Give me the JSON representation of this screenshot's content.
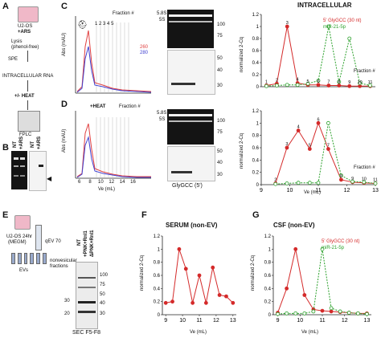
{
  "panels": {
    "A": {
      "letter": "A",
      "cells": [
        "U2-OS",
        "+ARS"
      ],
      "steps": [
        "Lysis",
        "(phenol-free)",
        "SPE",
        "INTRACELLULAR RNA",
        "+/- HEAT",
        "FPLC"
      ]
    },
    "B": {
      "letter": "B",
      "lanes_left": [
        "NT",
        "+ARS"
      ],
      "lanes_right": [
        "NT",
        "+ARS"
      ]
    },
    "C": {
      "letter": "C",
      "heading": "INTRACELLULAR",
      "fraction_header": "Fraction #",
      "fraction_numbers": [
        "1",
        "2",
        "3",
        "4",
        "5",
        "6",
        "7",
        "8",
        "9",
        "10",
        "11"
      ],
      "fplc_ylabel": "Abs (mAU)",
      "fplc_legend": [
        "260",
        "280"
      ],
      "gel_left_labels": [
        "5.8S",
        "5S"
      ],
      "gel_ticks": [
        "100",
        "75",
        "50",
        "40",
        "30"
      ],
      "line_ylabel": "normalized 2-Cq",
      "line_fraction_label": "Fraction #",
      "legend": [
        "5' GlyGCC (30 nt)",
        "miR-21-5p"
      ]
    },
    "D": {
      "letter": "D",
      "heat_label": "+HEAT",
      "fraction_header": "Fraction #",
      "fplc_ylabel": "Abs (mAU)",
      "fplc_xlabel": "Ve (mL)",
      "fplc_xticks": [
        "6",
        "8",
        "10",
        "12",
        "14",
        "16"
      ],
      "gel_left_labels": [
        "5.8S",
        "5S"
      ],
      "gel_ticks": [
        "100",
        "75",
        "50",
        "40",
        "30"
      ],
      "gel_bottom_label": "GlyGCC (5')",
      "line_ylabel": "normalized 2-Cq",
      "line_xlabel": "Ve (mL)",
      "line_xticks": [
        "9",
        "10",
        "11",
        "12",
        "13"
      ],
      "line_fraction_label": "Fraction #"
    },
    "E": {
      "letter": "E",
      "cells": "U2-OS 24hr",
      "medium": "(MEGM)",
      "column": "qEV 70",
      "evs_label": "EVs",
      "nonvesicular_label": "nonvesicular fractions",
      "blot_lanes": [
        "NT",
        "+PNK+Rnl1",
        "ΔPNK+Rnl1"
      ],
      "blot_ticks": [
        "100",
        "75",
        "50",
        "40",
        "30"
      ],
      "blot_left_ticks": [
        "30",
        "20"
      ],
      "bottom_label": "SEC F5-F8"
    },
    "F": {
      "letter": "F",
      "title": "SERUM (non-EV)",
      "ylabel": "normalized 2-Cq",
      "xlabel": "Ve (mL)",
      "xticks": [
        "9",
        "10",
        "11",
        "12",
        "13"
      ]
    },
    "G": {
      "letter": "G",
      "title": "CSF (non-EV)",
      "ylabel": "normalized 2-Cq",
      "xlabel": "Ve (mL)",
      "xticks": [
        "9",
        "10",
        "11",
        "12",
        "13"
      ],
      "legend": [
        "5' GlyGCC (30 nt)",
        "miR-21-5p"
      ]
    }
  },
  "chart_data": [
    {
      "id": "C-intracellular",
      "type": "line",
      "ylim": [
        0,
        1.2
      ],
      "yticks": [
        "0",
        "0.2",
        "0.4",
        "0.6",
        "0.8",
        "1",
        "1.2"
      ],
      "series": [
        {
          "name": "5' GlyGCC (30 nt)",
          "color": "#d42a2a",
          "x": [
            1,
            2,
            3,
            4,
            5,
            6,
            7,
            8,
            9,
            10,
            11
          ],
          "y": [
            0.02,
            0.05,
            1.0,
            0.06,
            0.03,
            0.03,
            0.02,
            0.02,
            0.01,
            0.01,
            0.01
          ]
        },
        {
          "name": "miR-21-5p",
          "color": "#2aa02a",
          "x": [
            1,
            2,
            3,
            4,
            5,
            6,
            7,
            8,
            9,
            10,
            11
          ],
          "y": [
            0.01,
            0.02,
            0.03,
            0.03,
            0.05,
            0.1,
            1.0,
            0.08,
            0.8,
            0.06,
            0.02
          ]
        }
      ],
      "point_labels": [
        "1",
        "2",
        "3",
        "4",
        "5",
        "6",
        "7",
        "8",
        "9",
        "10",
        "11"
      ]
    },
    {
      "id": "D-heat",
      "type": "line",
      "ylim": [
        0,
        1.2
      ],
      "yticks": [
        "0",
        "0.2",
        "0.4",
        "0.6",
        "0.8",
        "1",
        "1.2"
      ],
      "xlim": [
        9,
        13
      ],
      "series": [
        {
          "name": "5' GlyGCC (30 nt)",
          "color": "#d42a2a",
          "x": [
            9.5,
            9.9,
            10.3,
            10.7,
            11.0,
            11.35,
            11.8,
            12.2,
            12.6,
            13.0
          ],
          "y": [
            0.02,
            0.6,
            0.88,
            0.58,
            1.0,
            0.58,
            0.08,
            0.04,
            0.03,
            0.02
          ]
        },
        {
          "name": "miR-21-5p",
          "color": "#2aa02a",
          "x": [
            9.5,
            9.9,
            10.3,
            10.7,
            11.0,
            11.35,
            11.8,
            12.2,
            12.6,
            13.0
          ],
          "y": [
            0.01,
            0.02,
            0.03,
            0.03,
            0.03,
            1.0,
            0.15,
            0.05,
            0.04,
            0.02
          ]
        }
      ],
      "point_labels": [
        "2",
        "3",
        "4",
        "5",
        "6",
        "7",
        "8",
        "9",
        "10",
        "11"
      ]
    },
    {
      "id": "F-serum",
      "type": "line",
      "ylim": [
        0,
        1.2
      ],
      "yticks": [
        "0",
        "0.2",
        "0.4",
        "0.6",
        "0.8",
        "1",
        "1.2"
      ],
      "xlim": [
        8.8,
        13.2
      ],
      "series": [
        {
          "name": "5' GlyGCC (30 nt)",
          "color": "#d42a2a",
          "x": [
            9.0,
            9.4,
            9.8,
            10.2,
            10.6,
            11.0,
            11.4,
            11.8,
            12.2,
            12.6,
            13.0
          ],
          "y": [
            0.18,
            0.2,
            1.0,
            0.7,
            0.18,
            0.6,
            0.18,
            0.72,
            0.3,
            0.28,
            0.18
          ]
        }
      ]
    },
    {
      "id": "G-csf",
      "type": "line",
      "ylim": [
        0,
        1.2
      ],
      "yticks": [
        "0",
        "0.2",
        "0.4",
        "0.6",
        "0.8",
        "1",
        "1.2"
      ],
      "xlim": [
        8.8,
        13.2
      ],
      "series": [
        {
          "name": "5' GlyGCC (30 nt)",
          "color": "#d42a2a",
          "x": [
            9.0,
            9.4,
            9.8,
            10.2,
            10.6,
            11.0,
            11.4,
            11.8,
            12.2,
            12.6,
            13.0
          ],
          "y": [
            0.03,
            0.4,
            1.0,
            0.3,
            0.08,
            0.06,
            0.05,
            0.04,
            0.03,
            0.02,
            0.02
          ]
        },
        {
          "name": "miR-21-5p",
          "color": "#2aa02a",
          "x": [
            9.0,
            9.4,
            9.8,
            10.2,
            10.6,
            11.0,
            11.4,
            11.8,
            12.2,
            12.6,
            13.0
          ],
          "y": [
            0.01,
            0.02,
            0.02,
            0.02,
            0.05,
            1.0,
            0.1,
            0.05,
            0.03,
            0.02,
            0.01
          ]
        }
      ]
    }
  ]
}
